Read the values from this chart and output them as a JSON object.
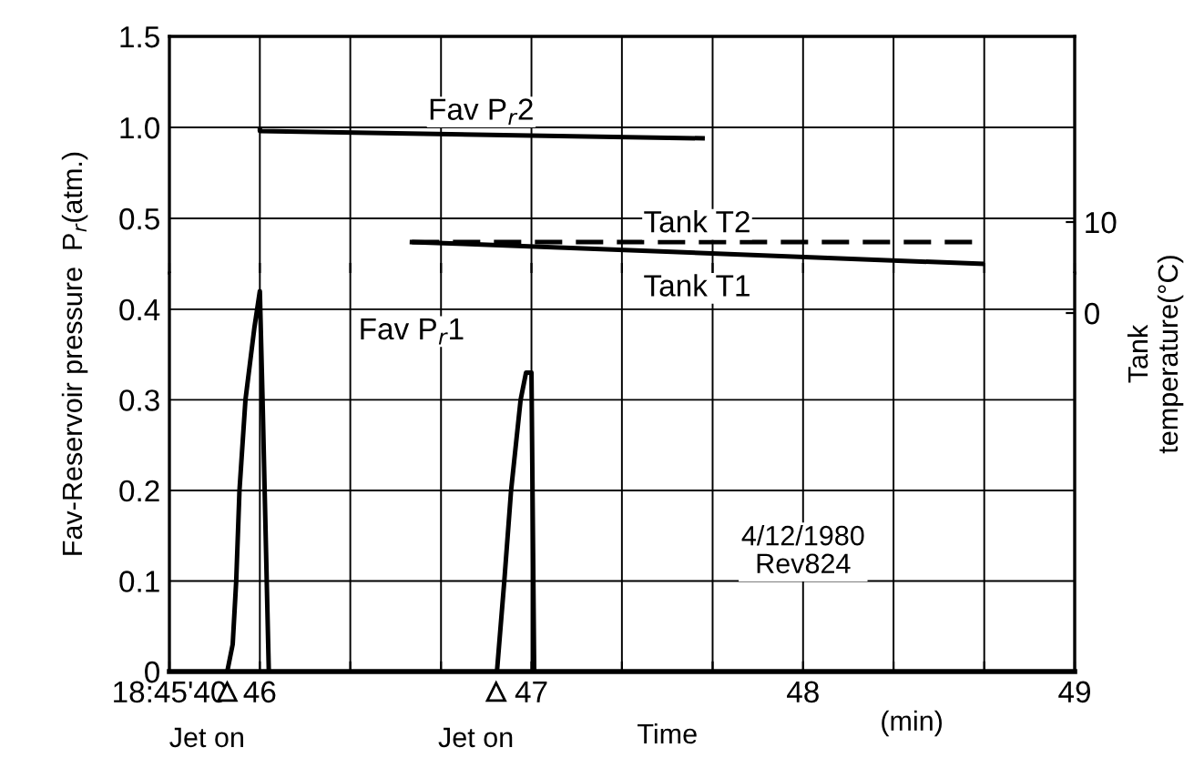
{
  "chart_data": [
    {
      "type": "line",
      "ylim": [
        0.2,
        1.5
      ],
      "yticks": [
        0.5,
        {
          "value": 1.0,
          "label": "1.0"
        },
        1.5
      ],
      "xlim": [
        45.667,
        49
      ],
      "xticks": [
        {
          "value": 45.667,
          "label": null
        },
        46,
        {
          "value": 46.333,
          "label": null
        },
        {
          "value": 46.667,
          "label": null
        },
        47,
        {
          "value": 47.333,
          "label": null
        },
        {
          "value": 47.667,
          "label": null
        },
        48,
        {
          "value": 48.333,
          "label": null
        },
        {
          "value": 48.667,
          "label": null
        },
        49
      ],
      "y2lim": [
        -39.4,
        30.4
      ],
      "y2ticks": [
        0,
        10
      ],
      "y2label": "Tank\ntemperature(°C)",
      "ylabel": "Fav-Reservoir pressure  P$_{r}$(atm.)",
      "tick_labels": "y",
      "grid": true,
      "marker": "none",
      "series": [
        {
          "name": "Fav P$_{r}$2",
          "color": "#000000",
          "line_style": "solid",
          "x": [
            46.0,
            46.0,
            47.63
          ],
          "values": [
            0.99,
            0.98,
            0.94
          ]
        },
        {
          "name": "Tank T2",
          "color": "#000000",
          "line_style": "dashed",
          "axis": "y2",
          "x": [
            46.56,
            48.66
          ],
          "values": [
            7.8,
            7.8
          ]
        },
        {
          "name": "Tank T1",
          "color": "#000000",
          "line_style": "solid",
          "axis": "y2",
          "x": [
            46.56,
            46.75,
            48.66
          ],
          "values": [
            7.8,
            7.6,
            5.4
          ]
        }
      ]
    },
    {
      "type": "line",
      "ylim": [
        0,
        0.44
      ],
      "yticks": [
        0,
        0.1,
        0.2,
        0.3,
        0.4
      ],
      "xlim": [
        45.667,
        49
      ],
      "xticks": [
        {
          "value": 45.667,
          "label": "18:45'40"
        },
        46,
        {
          "value": 46.333,
          "label": null
        },
        {
          "value": 46.667,
          "label": null
        },
        47,
        {
          "value": 47.333,
          "label": null
        },
        {
          "value": 47.667,
          "label": null
        },
        48,
        {
          "value": 48.333,
          "label": null
        },
        {
          "value": 48.667,
          "label": null
        },
        49
      ],
      "xlabel": "Time",
      "grid": true,
      "marker": "none",
      "annotations": [
        {
          "text": "Jet on",
          "x": 45.88,
          "y": 0
        },
        {
          "text": "Jet on",
          "x": 46.87,
          "y": 0
        },
        "(min)",
        "4/12/1980\nRev824"
      ],
      "series": [
        {
          "name": "Fav P$_{r}$1",
          "color": "#000000",
          "line_style": "solid",
          "x": [
            45.88,
            45.9,
            45.913,
            45.925,
            45.947,
            45.98,
            46.0,
            46.01,
            46.033,
            46.2,
            46.873,
            46.9,
            46.925,
            46.96,
            46.98,
            47.0,
            47.01
          ],
          "values": [
            0,
            0.03,
            0.1,
            0.2,
            0.3,
            0.38,
            0.42,
            0.3,
            0,
            null,
            0,
            0.1,
            0.2,
            0.3,
            0.33,
            0.33,
            0
          ]
        }
      ]
    }
  ]
}
